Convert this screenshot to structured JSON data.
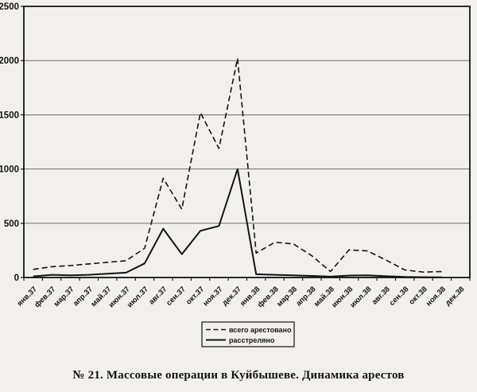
{
  "page": {
    "background": "#f2f0ed",
    "ink_color": "#141414",
    "grid_color": "#5a5a5a",
    "caption": "№ 21. Массовые операции в Куйбышеве. Динамика арестов"
  },
  "chart_data": {
    "type": "line",
    "title": "",
    "xlabel": "",
    "ylabel": "",
    "ylim": [
      0,
      2500
    ],
    "yticks": [
      0,
      500,
      1000,
      1500,
      2000,
      2500
    ],
    "grid": true,
    "legend_position": "bottom-center",
    "categories": [
      "янв.37",
      "фев.37",
      "мар.37",
      "апр.37",
      "май.37",
      "июн.37",
      "июл.37",
      "авг.37",
      "сен.37",
      "окт.37",
      "ноя.37",
      "дек.37",
      "янв.38",
      "фев.38",
      "мар.38",
      "апр.38",
      "май.38",
      "июн.38",
      "июл.38",
      "авг.38",
      "сен.38",
      "окт.38",
      "ноя.38",
      "дек.38"
    ],
    "series": [
      {
        "name": "всего арестовано",
        "style": "dashed",
        "values": [
          75,
          100,
          110,
          125,
          140,
          155,
          270,
          915,
          630,
          1520,
          1190,
          2020,
          225,
          325,
          310,
          200,
          55,
          255,
          245,
          160,
          70,
          50,
          55,
          null
        ]
      },
      {
        "name": "расстреляно",
        "style": "solid",
        "values": [
          10,
          25,
          20,
          25,
          35,
          45,
          130,
          450,
          215,
          430,
          475,
          1000,
          30,
          25,
          20,
          15,
          8,
          18,
          20,
          12,
          5,
          3,
          2,
          null
        ]
      }
    ]
  }
}
